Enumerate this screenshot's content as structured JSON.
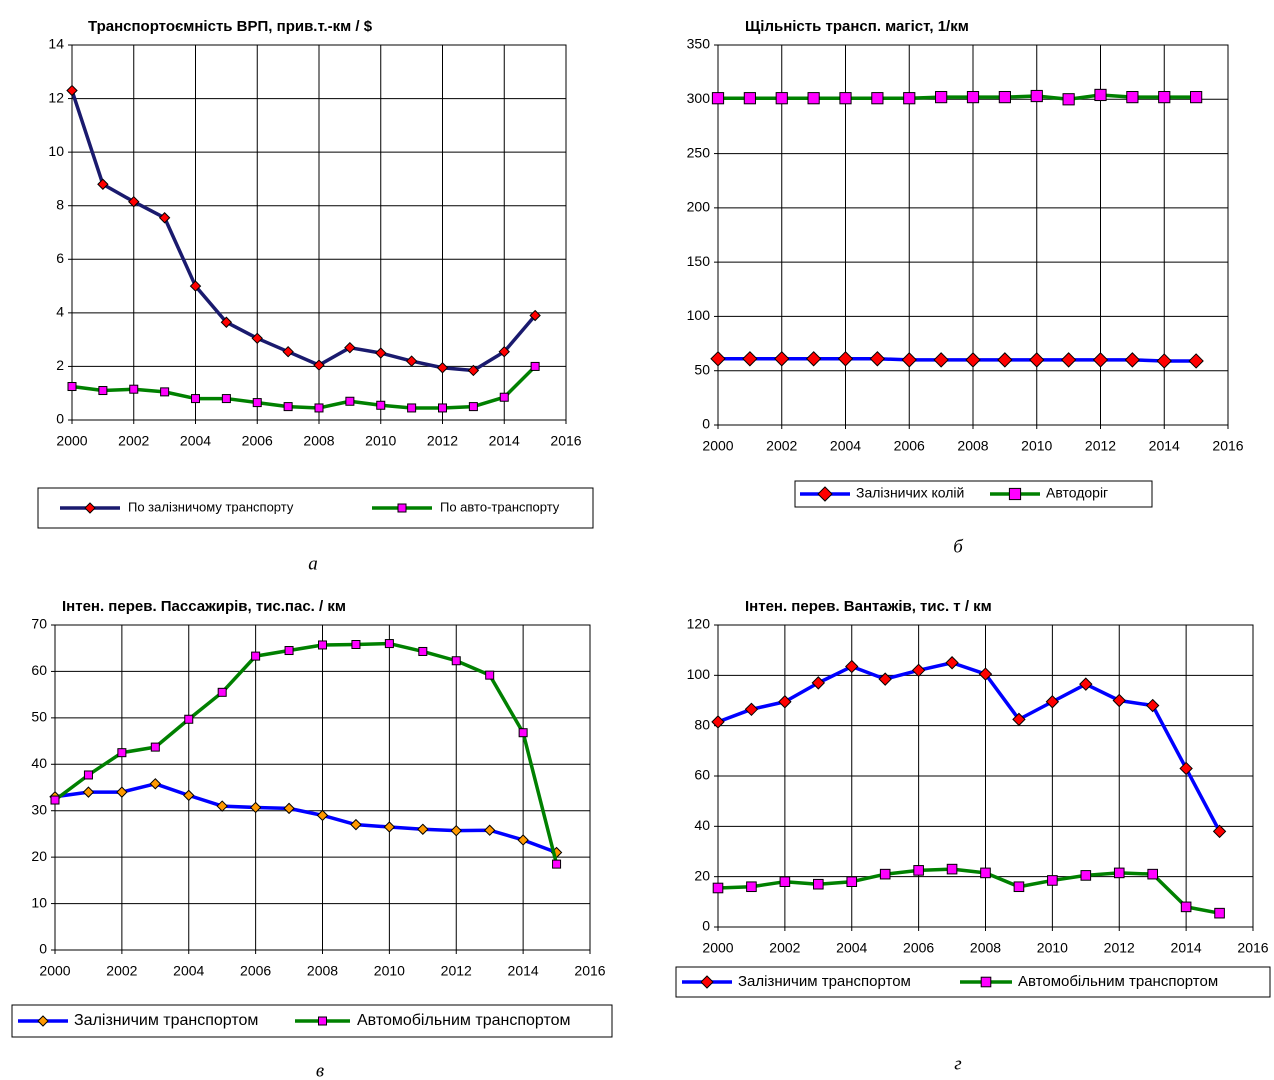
{
  "chart_data": [
    {
      "type": "line",
      "title": "Транспортоємність ВРП, прив.т.-км / $",
      "caption": "а",
      "x": [
        2000,
        2001,
        2002,
        2003,
        2004,
        2005,
        2006,
        2007,
        2008,
        2009,
        2010,
        2011,
        2012,
        2013,
        2014,
        2015
      ],
      "xlim": [
        2000,
        2016
      ],
      "xticks": [
        2000,
        2002,
        2004,
        2006,
        2008,
        2010,
        2012,
        2014,
        2016
      ],
      "ylim": [
        0,
        14
      ],
      "yticks": [
        0,
        2,
        4,
        6,
        8,
        10,
        12,
        14
      ],
      "grid": true,
      "legend": "bottom",
      "series": [
        {
          "name": "По залізничому транспорту",
          "color": "#1a1a6e",
          "marker": "diamond",
          "marker_color": "#ff0000",
          "values": [
            12.3,
            8.8,
            8.15,
            7.55,
            5.0,
            3.65,
            3.05,
            2.55,
            2.05,
            2.7,
            2.5,
            2.2,
            1.95,
            1.85,
            2.55,
            3.9
          ]
        },
        {
          "name": "По авто-транспорту",
          "color": "#008000",
          "marker": "square",
          "marker_color": "#ff00ff",
          "values": [
            1.25,
            1.1,
            1.15,
            1.05,
            0.8,
            0.8,
            0.65,
            0.5,
            0.45,
            0.7,
            0.55,
            0.45,
            0.45,
            0.5,
            0.85,
            2.0
          ]
        }
      ]
    },
    {
      "type": "line",
      "title": "Щільність трансп. магіст, 1/км",
      "caption": "б",
      "x": [
        2000,
        2001,
        2002,
        2003,
        2004,
        2005,
        2006,
        2007,
        2008,
        2009,
        2010,
        2011,
        2012,
        2013,
        2014,
        2015
      ],
      "xlim": [
        2000,
        2016
      ],
      "xticks": [
        2000,
        2002,
        2004,
        2006,
        2008,
        2010,
        2012,
        2014,
        2016
      ],
      "ylim": [
        0,
        350
      ],
      "yticks": [
        0,
        50,
        100,
        150,
        200,
        250,
        300,
        350
      ],
      "grid": true,
      "legend": "bottom",
      "series": [
        {
          "name": "Залізничих колій",
          "color": "#0000ff",
          "marker": "diamond",
          "marker_color": "#ff0000",
          "values": [
            61,
            61,
            61,
            61,
            61,
            61,
            60,
            60,
            60,
            60,
            60,
            60,
            60,
            60,
            59,
            59
          ]
        },
        {
          "name": "Автодоріг",
          "color": "#008000",
          "marker": "square",
          "marker_color": "#ff00ff",
          "values": [
            301,
            301,
            301,
            301,
            301,
            301,
            301,
            302,
            302,
            302,
            303,
            300,
            304,
            302,
            302,
            302
          ]
        }
      ]
    },
    {
      "type": "line",
      "title": "Інтен. перев. Пассажирів, тис.пас. / км",
      "caption": "в",
      "x": [
        2000,
        2001,
        2002,
        2003,
        2004,
        2005,
        2006,
        2007,
        2008,
        2009,
        2010,
        2011,
        2012,
        2013,
        2014,
        2015
      ],
      "xlim": [
        2000,
        2016
      ],
      "xticks": [
        2000,
        2002,
        2004,
        2006,
        2008,
        2010,
        2012,
        2014,
        2016
      ],
      "ylim": [
        0,
        70
      ],
      "yticks": [
        0,
        10,
        20,
        30,
        40,
        50,
        60,
        70
      ],
      "grid": true,
      "legend": "bottom",
      "series": [
        {
          "name": "Залізничим транспортом",
          "color": "#0000ff",
          "marker": "diamond",
          "marker_color": "#ff9900",
          "values": [
            33,
            34,
            34,
            35.8,
            33.3,
            31,
            30.7,
            30.5,
            29,
            27,
            26.5,
            26,
            25.7,
            25.8,
            23.7,
            21
          ]
        },
        {
          "name": "Автомобільним транспортом",
          "color": "#008000",
          "marker": "square",
          "marker_color": "#ff00ff",
          "values": [
            32.3,
            37.7,
            42.5,
            43.7,
            49.7,
            55.5,
            63.3,
            64.5,
            65.7,
            65.8,
            66,
            64.3,
            62.3,
            59.2,
            46.8,
            18.5
          ]
        }
      ]
    },
    {
      "type": "line",
      "title": "Інтен. перев. Вантажів, тис. т / км",
      "caption": "г",
      "x": [
        2000,
        2001,
        2002,
        2003,
        2004,
        2005,
        2006,
        2007,
        2008,
        2009,
        2010,
        2011,
        2012,
        2013,
        2014,
        2015
      ],
      "xlim": [
        2000,
        2016
      ],
      "xticks": [
        2000,
        2002,
        2004,
        2006,
        2008,
        2010,
        2012,
        2014,
        2016
      ],
      "ylim": [
        0,
        120
      ],
      "yticks": [
        0,
        20,
        40,
        60,
        80,
        100,
        120
      ],
      "grid": true,
      "legend": "bottom",
      "series": [
        {
          "name": "Залізничим транспортом",
          "color": "#0000ff",
          "marker": "diamond",
          "marker_color": "#ff0000",
          "values": [
            81.5,
            86.5,
            89.5,
            97,
            103.5,
            98.5,
            102,
            105,
            100.5,
            82.5,
            89.5,
            96.5,
            90,
            88,
            63,
            38
          ]
        },
        {
          "name": "Автомобільним транспортом",
          "color": "#008000",
          "marker": "square",
          "marker_color": "#ff00ff",
          "values": [
            15.5,
            16,
            18,
            17,
            18,
            21,
            22.5,
            23,
            21.5,
            16,
            18.5,
            20.5,
            21.5,
            21,
            8,
            5.5
          ]
        }
      ]
    }
  ]
}
